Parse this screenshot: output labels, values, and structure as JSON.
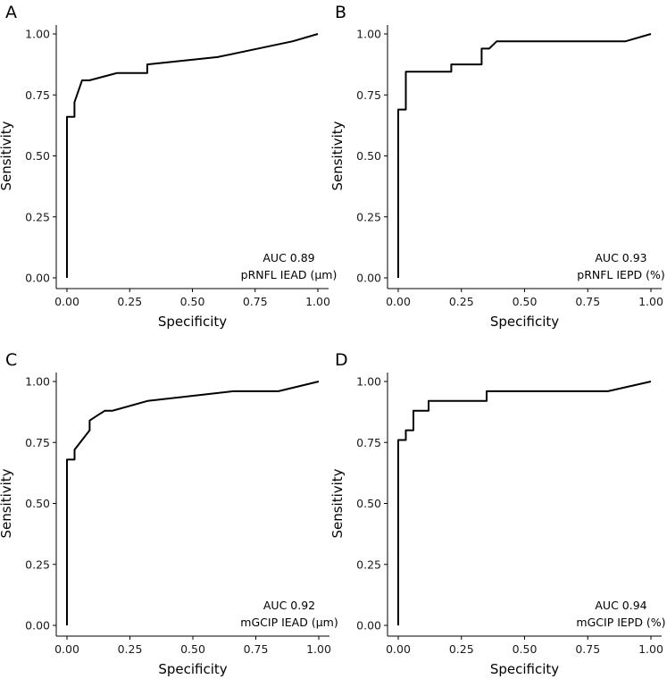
{
  "chart_data": [
    {
      "type": "line",
      "panel_label": "A",
      "xlabel": "Specificity",
      "ylabel": "Sensitivity",
      "xlim": [
        0,
        1
      ],
      "ylim": [
        0,
        1
      ],
      "xticks": [
        "0.00",
        "0.25",
        "0.50",
        "0.75",
        "1.00"
      ],
      "yticks": [
        "0.00",
        "0.25",
        "0.50",
        "0.75",
        "1.00"
      ],
      "annotation": [
        "AUC 0.89",
        "pRNFL IEAD (µm)"
      ],
      "line_color": "#000000",
      "series": [
        {
          "name": "pRNFL IEAD (µm)",
          "x": [
            0,
            0,
            0.03,
            0.03,
            0.06,
            0.09,
            0.2,
            0.32,
            0.32,
            0.6,
            0.9,
            1.0
          ],
          "y": [
            0,
            0.66,
            0.66,
            0.72,
            0.81,
            0.81,
            0.84,
            0.84,
            0.875,
            0.905,
            0.97,
            1.0
          ]
        }
      ]
    },
    {
      "type": "line",
      "panel_label": "B",
      "xlabel": "Specificity",
      "ylabel": "Sensitivity",
      "xlim": [
        0,
        1
      ],
      "ylim": [
        0,
        1
      ],
      "xticks": [
        "0.00",
        "0.25",
        "0.50",
        "0.75",
        "1.00"
      ],
      "yticks": [
        "0.00",
        "0.25",
        "0.50",
        "0.75",
        "1.00"
      ],
      "annotation": [
        "AUC 0.93",
        "pRNFL IEPD (%)"
      ],
      "line_color": "#000000",
      "series": [
        {
          "name": "pRNFL IEPD (%)",
          "x": [
            0,
            0,
            0.03,
            0.03,
            0.21,
            0.21,
            0.33,
            0.33,
            0.36,
            0.39,
            0.9,
            1.0
          ],
          "y": [
            0,
            0.69,
            0.69,
            0.845,
            0.845,
            0.875,
            0.875,
            0.94,
            0.94,
            0.97,
            0.97,
            1.0
          ]
        }
      ]
    },
    {
      "type": "line",
      "panel_label": "C",
      "xlabel": "Specificity",
      "ylabel": "Sensitivity",
      "xlim": [
        0,
        1
      ],
      "ylim": [
        0,
        1
      ],
      "xticks": [
        "0.00",
        "0.25",
        "0.50",
        "0.75",
        "1.00"
      ],
      "yticks": [
        "0.00",
        "0.25",
        "0.50",
        "0.75",
        "1.00"
      ],
      "annotation": [
        "AUC 0.92",
        "mGCIP IEAD (µm)"
      ],
      "line_color": "#000000",
      "series": [
        {
          "name": "mGCIP IEAD (µm)",
          "x": [
            0,
            0,
            0.03,
            0.03,
            0.09,
            0.09,
            0.12,
            0.15,
            0.18,
            0.32,
            0.66,
            0.84,
            1.0
          ],
          "y": [
            0,
            0.68,
            0.68,
            0.72,
            0.8,
            0.84,
            0.86,
            0.88,
            0.88,
            0.92,
            0.96,
            0.96,
            1.0
          ]
        }
      ]
    },
    {
      "type": "line",
      "panel_label": "D",
      "xlabel": "Specificity",
      "ylabel": "Sensitivity",
      "xlim": [
        0,
        1
      ],
      "ylim": [
        0,
        1
      ],
      "xticks": [
        "0.00",
        "0.25",
        "0.50",
        "0.75",
        "1.00"
      ],
      "yticks": [
        "0.00",
        "0.25",
        "0.50",
        "0.75",
        "1.00"
      ],
      "annotation": [
        "AUC 0.94",
        "mGCIP IEPD (%)"
      ],
      "line_color": "#000000",
      "series": [
        {
          "name": "mGCIP IEPD (%)",
          "x": [
            0,
            0,
            0.03,
            0.03,
            0.06,
            0.06,
            0.12,
            0.12,
            0.35,
            0.35,
            0.83,
            1.0
          ],
          "y": [
            0,
            0.76,
            0.76,
            0.8,
            0.8,
            0.88,
            0.88,
            0.92,
            0.92,
            0.96,
            0.96,
            1.0
          ]
        }
      ]
    }
  ]
}
